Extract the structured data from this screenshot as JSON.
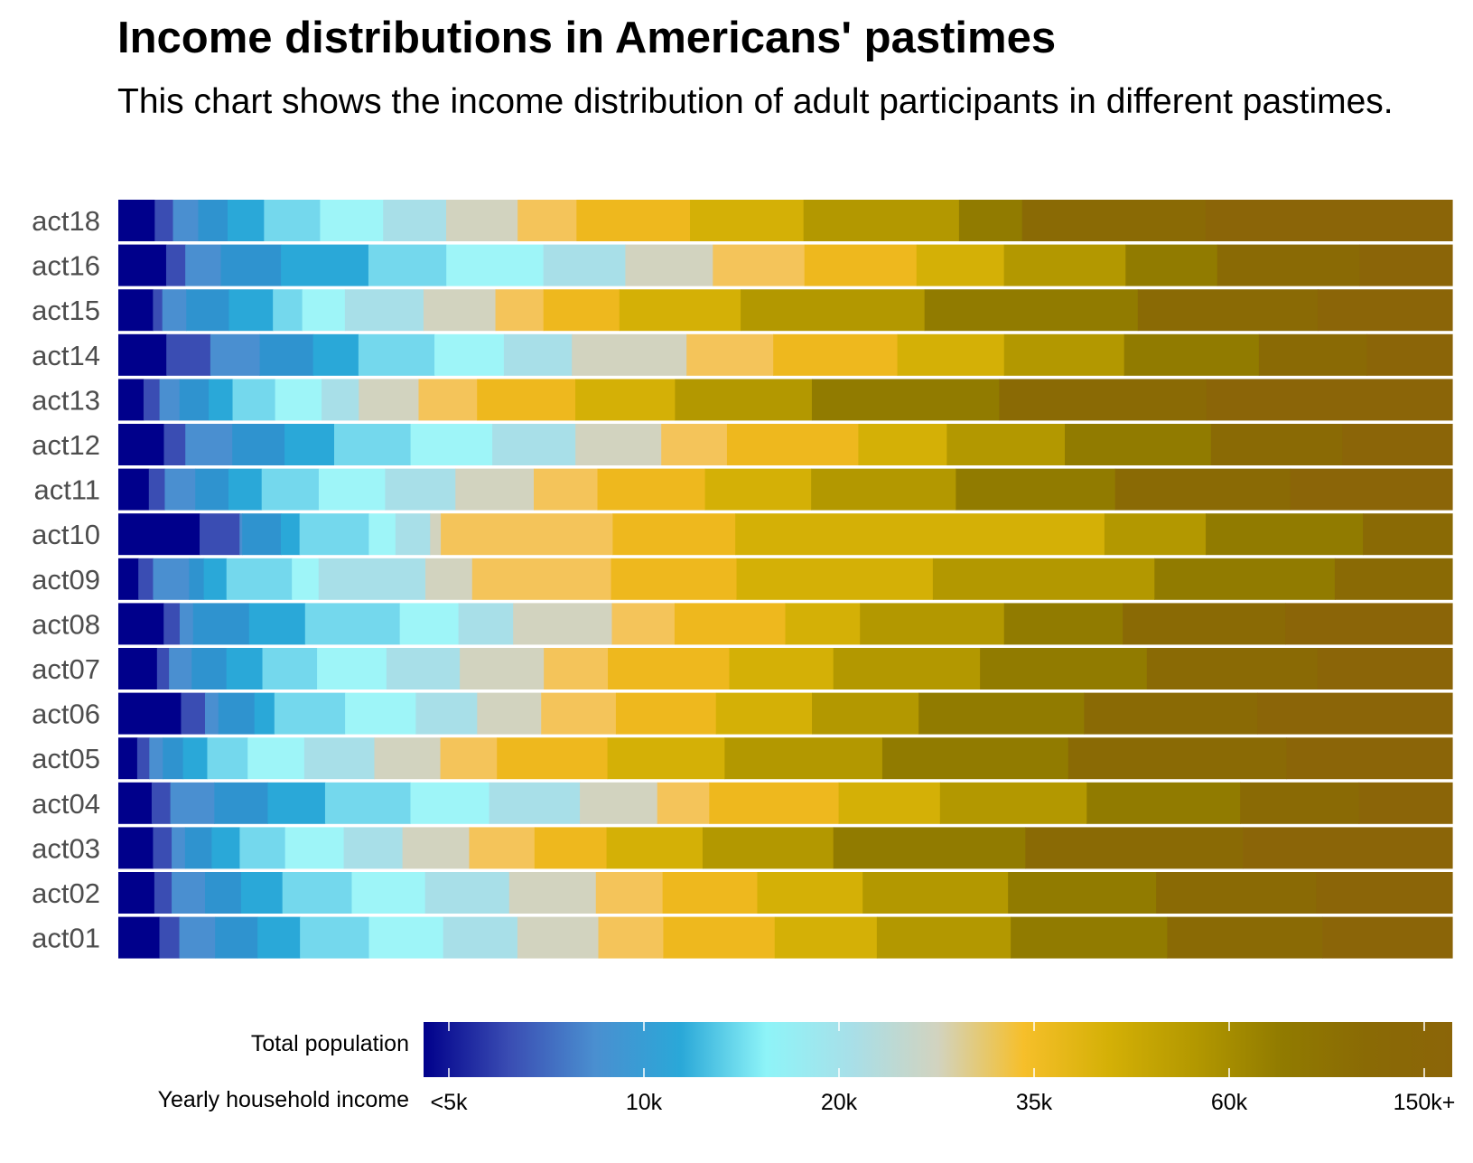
{
  "chart_data": {
    "type": "bar",
    "orientation": "horizontal",
    "stacked": "100%",
    "title": "Income distributions in Americans' pastimes",
    "subtitle": "This chart shows the income distribution of adult participants in different pastimes.",
    "categories": [
      "act18",
      "act16",
      "act15",
      "act14",
      "act13",
      "act12",
      "act11",
      "act10",
      "act09",
      "act08",
      "act07",
      "act06",
      "act05",
      "act04",
      "act03",
      "act02",
      "act01"
    ],
    "segments": [
      {
        "category": "act18",
        "shares": [
          2.6,
          1.3,
          1.8,
          2.1,
          2.6,
          4.0,
          4.5,
          4.5,
          5.1,
          4.2,
          8.1,
          8.1,
          11.1,
          4.5,
          13.1,
          17.6
        ]
      },
      {
        "category": "act16",
        "shares": [
          3.5,
          1.4,
          2.6,
          4.4,
          6.4,
          5.7,
          7.1,
          6.0,
          6.4,
          6.7,
          8.2,
          6.4,
          8.9,
          6.7,
          10.4,
          6.8
        ]
      },
      {
        "category": "act15",
        "shares": [
          2.6,
          0.7,
          1.8,
          3.2,
          3.3,
          2.2,
          3.2,
          5.9,
          5.4,
          3.6,
          5.7,
          9.1,
          13.8,
          16.0,
          13.5,
          10.1
        ]
      },
      {
        "category": "act14",
        "shares": [
          3.6,
          3.3,
          3.7,
          4.0,
          3.4,
          5.7,
          5.2,
          5.1,
          8.6,
          6.5,
          9.3,
          8.0,
          9.0,
          10.1,
          8.1,
          6.4
        ]
      },
      {
        "category": "act13",
        "shares": [
          1.9,
          1.2,
          1.5,
          2.2,
          1.8,
          3.2,
          3.5,
          2.8,
          4.5,
          4.4,
          7.4,
          7.5,
          10.3,
          14.1,
          15.6,
          18.5
        ]
      },
      {
        "category": "act12",
        "shares": [
          3.4,
          1.6,
          3.5,
          3.9,
          3.7,
          5.7,
          6.1,
          6.2,
          6.4,
          4.9,
          9.8,
          6.6,
          8.8,
          10.9,
          9.8,
          8.2
        ]
      },
      {
        "category": "act11",
        "shares": [
          2.3,
          1.2,
          2.3,
          2.5,
          2.5,
          4.3,
          5.0,
          5.3,
          5.9,
          4.8,
          8.1,
          8.0,
          10.9,
          12.0,
          13.2,
          12.2
        ]
      },
      {
        "category": "act10",
        "shares": [
          6.1,
          3.0,
          0.2,
          2.9,
          1.4,
          5.2,
          2.0,
          2.6,
          0.8,
          12.9,
          9.2,
          27.7,
          7.6,
          11.8,
          6.7,
          0.0
        ]
      },
      {
        "category": "act09",
        "shares": [
          1.5,
          1.1,
          2.7,
          1.1,
          1.7,
          4.9,
          2.0,
          8.0,
          3.5,
          10.4,
          9.4,
          14.7,
          16.6,
          13.5,
          8.8,
          0.0
        ]
      },
      {
        "category": "act08",
        "shares": [
          3.4,
          1.2,
          1.0,
          4.2,
          4.2,
          7.1,
          4.4,
          4.1,
          7.4,
          4.7,
          8.3,
          5.6,
          10.8,
          8.9,
          12.2,
          12.5
        ]
      },
      {
        "category": "act07",
        "shares": [
          2.9,
          0.9,
          1.7,
          2.6,
          2.7,
          4.1,
          5.2,
          5.5,
          6.3,
          4.8,
          9.1,
          7.8,
          11.0,
          12.5,
          12.8,
          10.1
        ]
      },
      {
        "category": "act06",
        "shares": [
          4.7,
          1.8,
          1.0,
          2.7,
          1.5,
          5.3,
          5.3,
          4.6,
          4.8,
          5.6,
          7.5,
          7.2,
          8.0,
          12.4,
          13.0,
          14.6
        ]
      },
      {
        "category": "act05",
        "shares": [
          1.4,
          0.9,
          1.0,
          1.5,
          1.8,
          3.0,
          4.2,
          5.2,
          4.9,
          4.2,
          8.2,
          8.7,
          11.7,
          13.8,
          16.2,
          12.3
        ]
      },
      {
        "category": "act04",
        "shares": [
          2.5,
          1.4,
          3.3,
          4.0,
          4.3,
          6.4,
          5.9,
          6.8,
          5.8,
          3.9,
          9.7,
          7.6,
          11.0,
          11.5,
          8.9,
          7.0
        ]
      },
      {
        "category": "act03",
        "shares": [
          2.6,
          1.4,
          1.0,
          2.0,
          2.1,
          3.4,
          4.4,
          4.4,
          5.0,
          4.9,
          5.4,
          7.2,
          9.8,
          14.4,
          16.3,
          15.7
        ]
      },
      {
        "category": "act02",
        "shares": [
          2.7,
          1.3,
          2.5,
          2.7,
          3.1,
          5.2,
          5.5,
          6.3,
          6.5,
          5.0,
          7.1,
          7.9,
          10.9,
          11.1,
          12.0,
          10.2
        ]
      },
      {
        "category": "act01",
        "shares": [
          3.1,
          1.5,
          2.7,
          3.2,
          3.2,
          5.2,
          5.6,
          5.6,
          6.1,
          4.9,
          8.4,
          7.7,
          10.1,
          11.8,
          11.7,
          9.8
        ]
      }
    ],
    "colors": [
      "#00008b",
      "#3a4db3",
      "#4a8fd0",
      "#2f93cf",
      "#2aa8d8",
      "#74d8ed",
      "#9ef5f8",
      "#a8dfe8",
      "#d2d3bf",
      "#f4c45a",
      "#eeb81e",
      "#d4b006",
      "#b39800",
      "#917b00",
      "#8a6a05",
      "#8b6508"
    ],
    "legend": {
      "row1_label": "Total population",
      "row2_label": "Yearly household income",
      "ticks": [
        "<5k",
        "10k",
        "20k",
        "35k",
        "60k",
        "150k+"
      ],
      "gradient_stops": [
        "#00008b",
        "#3a4db3",
        "#4a8fd0",
        "#2aa8d8",
        "#8ef4f8",
        "#a8dfe8",
        "#d2d3bf",
        "#f6bf2a",
        "#d4b006",
        "#b39800",
        "#917b00",
        "#8a6a05",
        "#8b6508"
      ]
    }
  }
}
